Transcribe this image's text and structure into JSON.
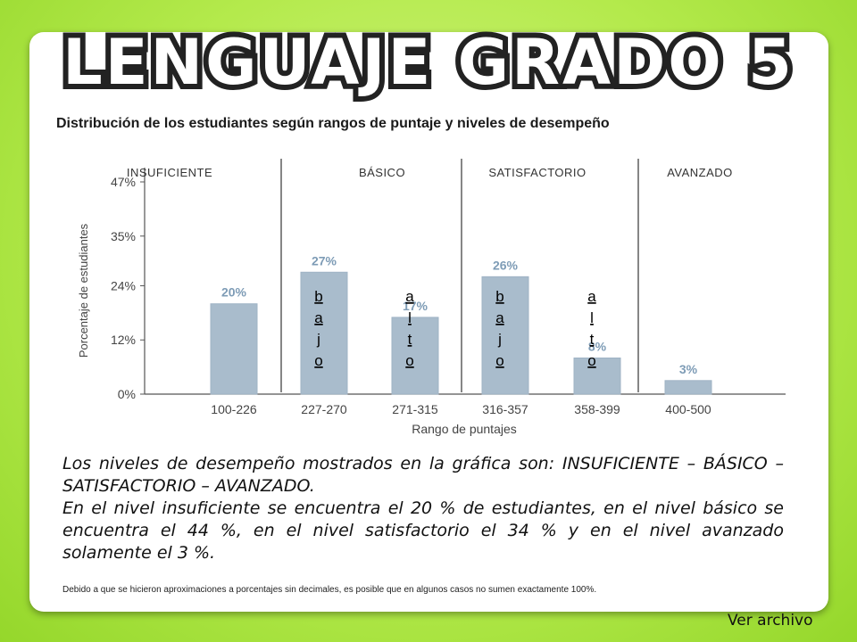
{
  "header": {
    "title": "LENGUAJE GRADO 5",
    "subtitle": "Distribución de los estudiantes según rangos de puntaje y niveles de desempeño"
  },
  "chart_data": {
    "type": "bar",
    "categories": [
      "100-226",
      "227-270",
      "271-315",
      "316-357",
      "358-399",
      "400-500"
    ],
    "values": [
      20,
      27,
      17,
      26,
      8,
      3
    ],
    "data_labels": [
      "20%",
      "27%",
      "17%",
      "26%",
      "8%",
      "3%"
    ],
    "xlabel": "Rango de puntajes",
    "ylabel": "Porcentaje de estudiantes",
    "ylim": [
      0,
      47
    ],
    "yticks": [
      0,
      12,
      24,
      35,
      47
    ],
    "ytick_labels": [
      "0%",
      "12%",
      "24%",
      "35%",
      "47%"
    ],
    "levels": [
      "INSUFICIENTE",
      "BÁSICO",
      "SATISFACTORIO",
      "AVANZADO"
    ],
    "bar_annotations": [
      {
        "category": "227-270",
        "text": [
          "b",
          "a",
          "j",
          "o"
        ]
      },
      {
        "category": "271-315",
        "text": [
          "a",
          "l",
          "t",
          "o"
        ]
      },
      {
        "category": "316-357",
        "text": [
          "b",
          "a",
          "j",
          "o"
        ]
      },
      {
        "category": "358-399",
        "text": [
          "a",
          "l",
          "t",
          "o"
        ]
      }
    ],
    "grid": false,
    "bar_color": "#a9bccc",
    "label_color": "#7e9cb6"
  },
  "body": {
    "paragraph1": "Los niveles de desempeño mostrados en la gráfica son: INSUFICIENTE – BÁSICO – SATISFACTORIO – AVANZADO.",
    "paragraph2": "En el nivel insuficiente se encuentra el 20 % de estudiantes, en el nivel básico se encuentra el 44 %, en el nivel satisfactorio el 34 % y en el nivel avanzado solamente el 3 %.",
    "footnote": "Debido a que se hicieron aproximaciones a porcentajes sin decimales, es posible que en algunos casos no sumen exactamente 100%."
  },
  "footer": {
    "link_label": "Ver archivo"
  }
}
